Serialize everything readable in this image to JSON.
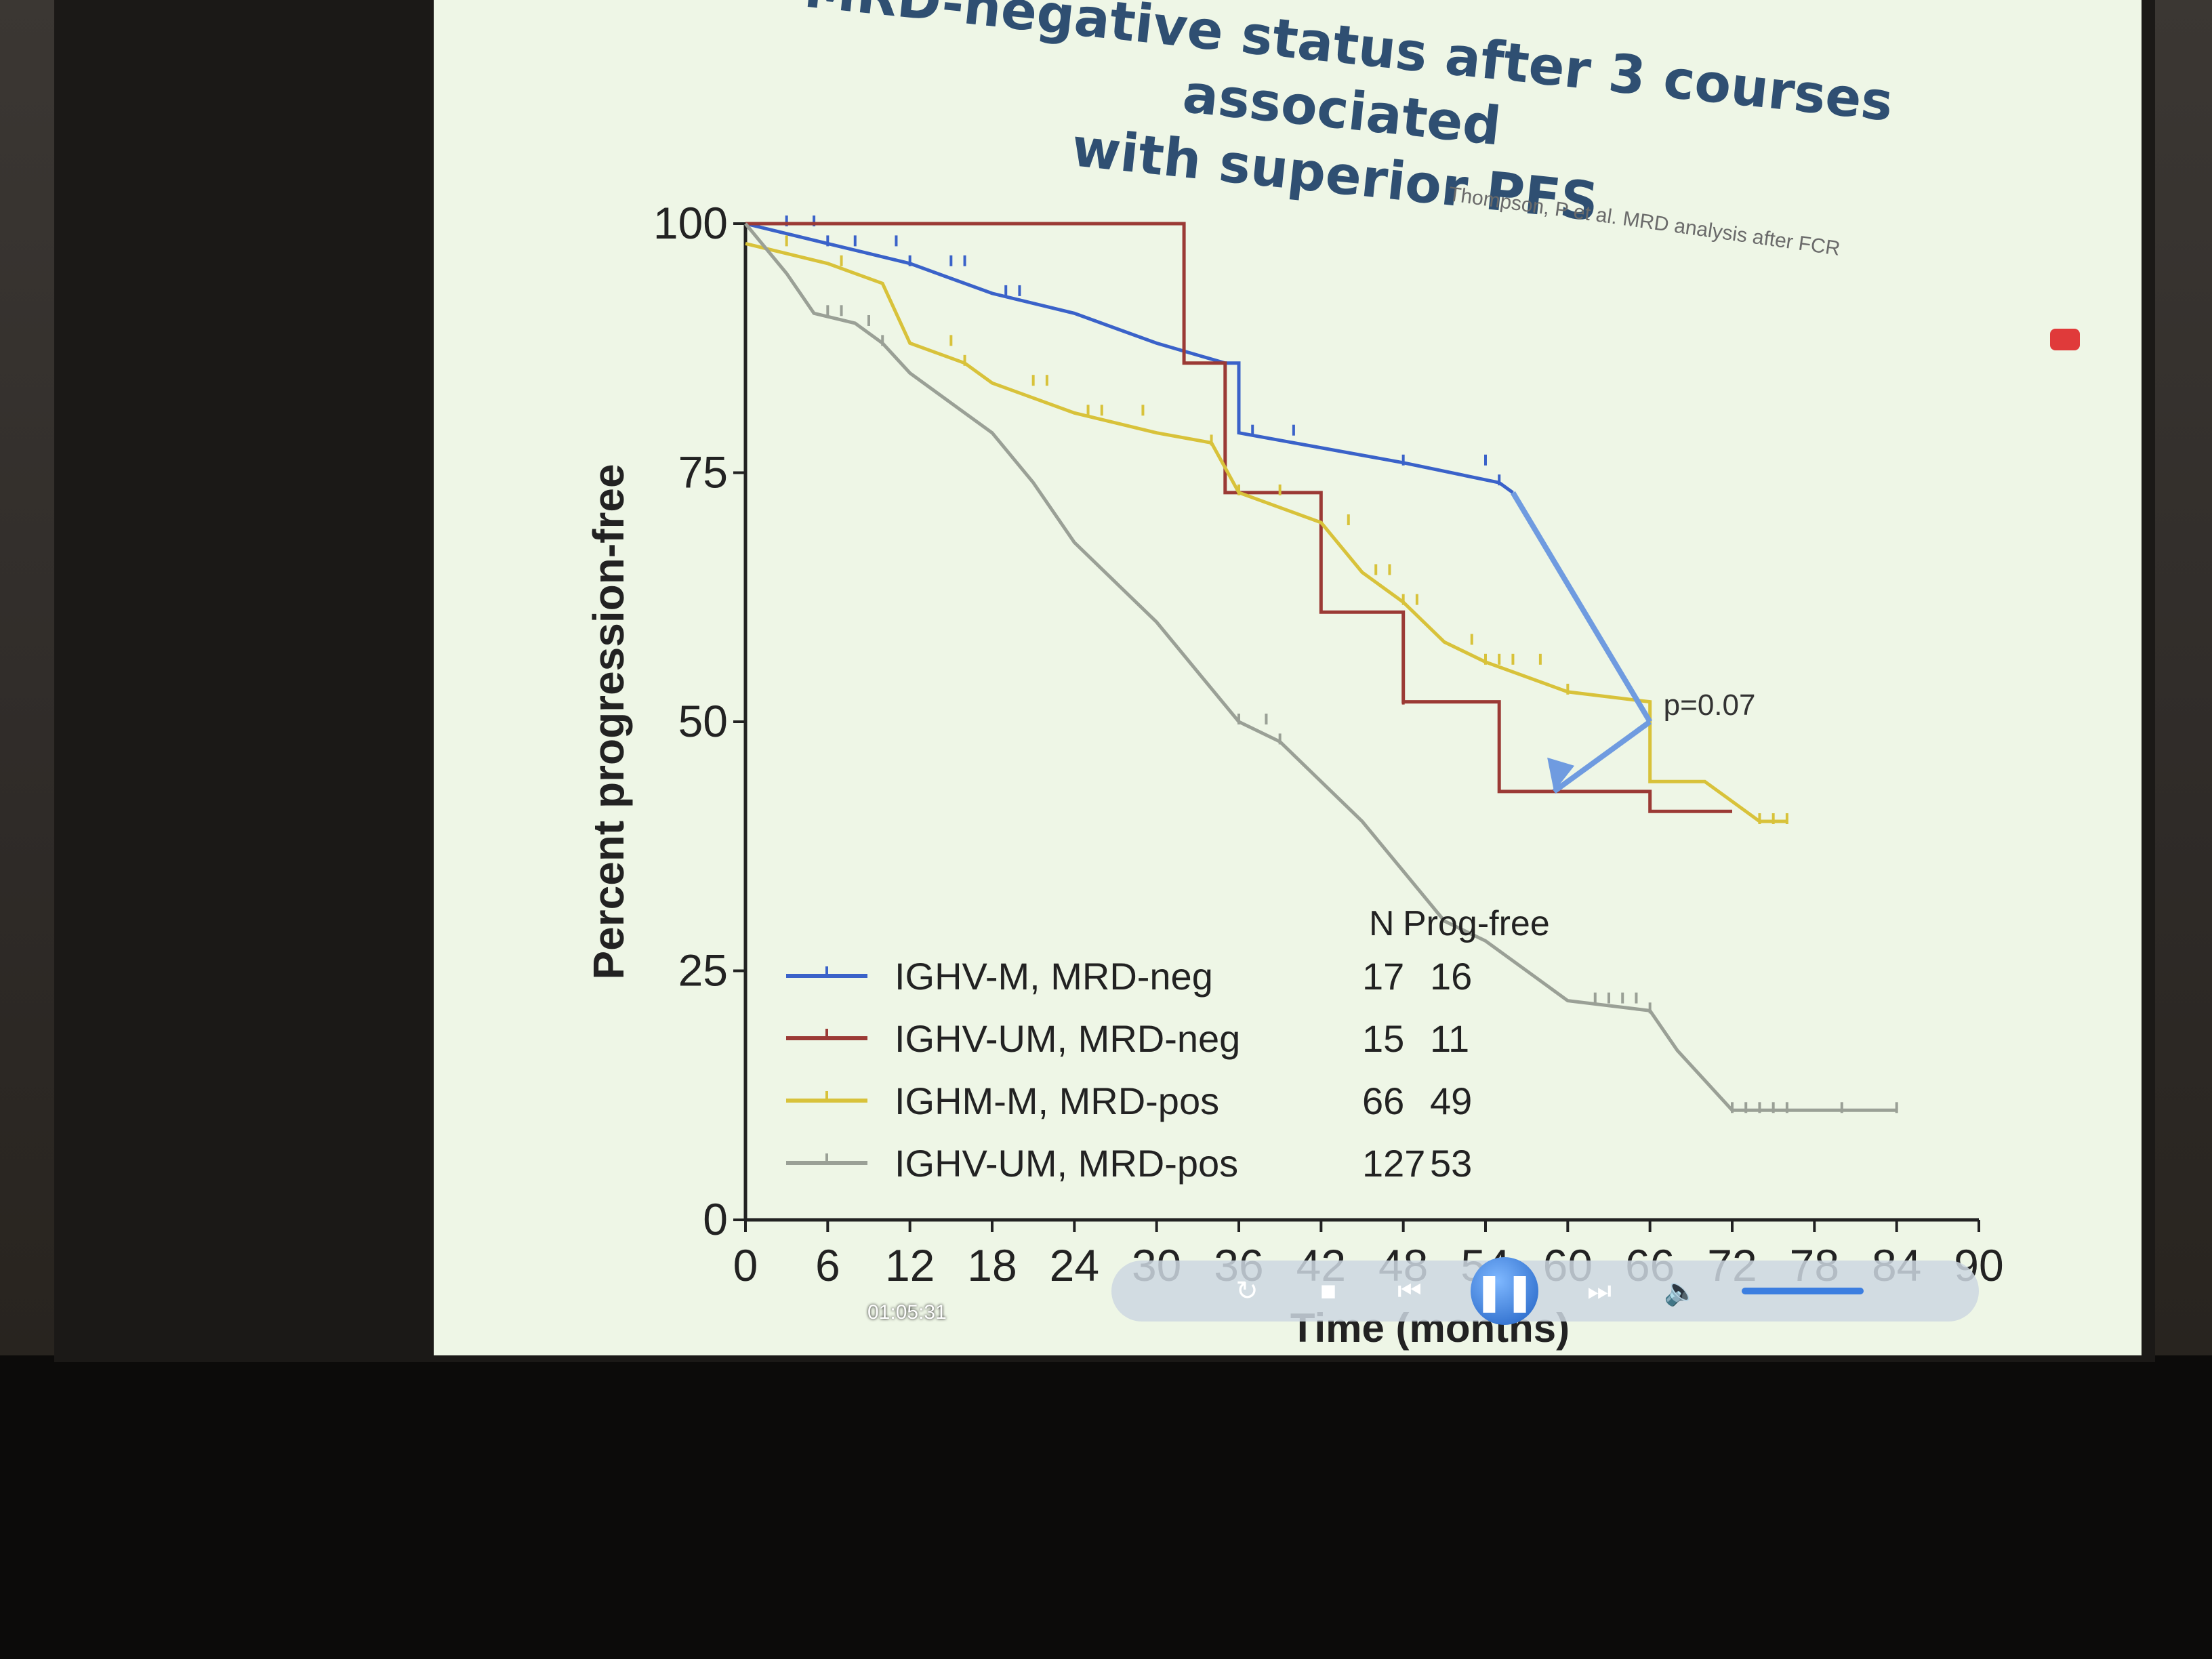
{
  "slide": {
    "title": "MRD-negative status after 3 courses associated\nwith superior PFS",
    "citation": "Thompson, P et al. MRD analysis after FCR"
  },
  "player": {
    "time": "01:05:31"
  },
  "chart_data": {
    "type": "line",
    "xlabel": "Time (months)",
    "ylabel": "Percent progression-free",
    "xlim": [
      0,
      90
    ],
    "ylim": [
      0,
      100
    ],
    "xticks": [
      0,
      6,
      12,
      18,
      24,
      30,
      36,
      42,
      48,
      54,
      60,
      66,
      72,
      78,
      84,
      90
    ],
    "yticks": [
      0,
      25,
      50,
      75,
      100
    ],
    "legend_header": {
      "n": "N",
      "prog_free": "Prog-free"
    },
    "legend_placement": "bottom-left",
    "annotation": {
      "text": "p=0.07",
      "x": 66,
      "y": 50
    },
    "series": [
      {
        "name": "IGHV-M, MRD-neg",
        "n": "17",
        "prog_free": "16",
        "color": "#3a62c9",
        "points": [
          [
            0,
            100
          ],
          [
            6,
            98
          ],
          [
            12,
            96
          ],
          [
            18,
            93
          ],
          [
            24,
            91
          ],
          [
            30,
            88
          ],
          [
            35,
            86
          ],
          [
            36,
            86
          ],
          [
            36,
            79
          ],
          [
            48,
            76
          ],
          [
            55,
            74
          ],
          [
            56,
            73
          ]
        ],
        "censor": [
          3,
          5,
          6,
          8,
          11,
          12,
          15,
          16,
          19,
          20,
          37,
          40,
          48,
          54,
          55
        ]
      },
      {
        "name": "IGHV-UM, MRD-neg",
        "n": "15",
        "prog_free": "11",
        "color": "#9b3a35",
        "points": [
          [
            0,
            100
          ],
          [
            32,
            100
          ],
          [
            32,
            86
          ],
          [
            35,
            86
          ],
          [
            35,
            73
          ],
          [
            42,
            73
          ],
          [
            42,
            61
          ],
          [
            48,
            61
          ],
          [
            48,
            52
          ],
          [
            55,
            52
          ],
          [
            55,
            43
          ],
          [
            66,
            43
          ],
          [
            66,
            41
          ],
          [
            72,
            41
          ]
        ],
        "censor": [
          48
        ]
      },
      {
        "name": "IGHM-M, MRD-pos",
        "n": "66",
        "prog_free": "49",
        "color": "#d8c23a",
        "points": [
          [
            0,
            98
          ],
          [
            6,
            96
          ],
          [
            10,
            94
          ],
          [
            12,
            88
          ],
          [
            16,
            86
          ],
          [
            18,
            84
          ],
          [
            24,
            81
          ],
          [
            30,
            79
          ],
          [
            34,
            78
          ],
          [
            36,
            73
          ],
          [
            42,
            70
          ],
          [
            45,
            65
          ],
          [
            48,
            62
          ],
          [
            51,
            58
          ],
          [
            54,
            56
          ],
          [
            60,
            53
          ],
          [
            66,
            52
          ],
          [
            66,
            44
          ],
          [
            70,
            44
          ],
          [
            74,
            40
          ],
          [
            76,
            40
          ]
        ],
        "censor": [
          3,
          7,
          15,
          16,
          21,
          22,
          25,
          26,
          29,
          34,
          36,
          39,
          44,
          46,
          47,
          48,
          49,
          53,
          54,
          55,
          56,
          58,
          60,
          74,
          75,
          76
        ]
      },
      {
        "name": "IGHV-UM, MRD-pos",
        "n": "127",
        "prog_free": "53",
        "color": "#9aa096",
        "points": [
          [
            0,
            100
          ],
          [
            3,
            95
          ],
          [
            5,
            91
          ],
          [
            8,
            90
          ],
          [
            10,
            88
          ],
          [
            12,
            85
          ],
          [
            15,
            82
          ],
          [
            18,
            79
          ],
          [
            21,
            74
          ],
          [
            24,
            68
          ],
          [
            27,
            64
          ],
          [
            30,
            60
          ],
          [
            33,
            55
          ],
          [
            36,
            50
          ],
          [
            39,
            48
          ],
          [
            42,
            44
          ],
          [
            45,
            40
          ],
          [
            48,
            35
          ],
          [
            51,
            30
          ],
          [
            54,
            28
          ],
          [
            57,
            25
          ],
          [
            60,
            22
          ],
          [
            66,
            21
          ],
          [
            68,
            17
          ],
          [
            70,
            14
          ],
          [
            72,
            11
          ],
          [
            80,
            11
          ],
          [
            84,
            11
          ]
        ],
        "censor": [
          6,
          7,
          9,
          10,
          36,
          38,
          39,
          62,
          63,
          64,
          65,
          66,
          72,
          73,
          74,
          75,
          76,
          80,
          84
        ]
      }
    ]
  }
}
